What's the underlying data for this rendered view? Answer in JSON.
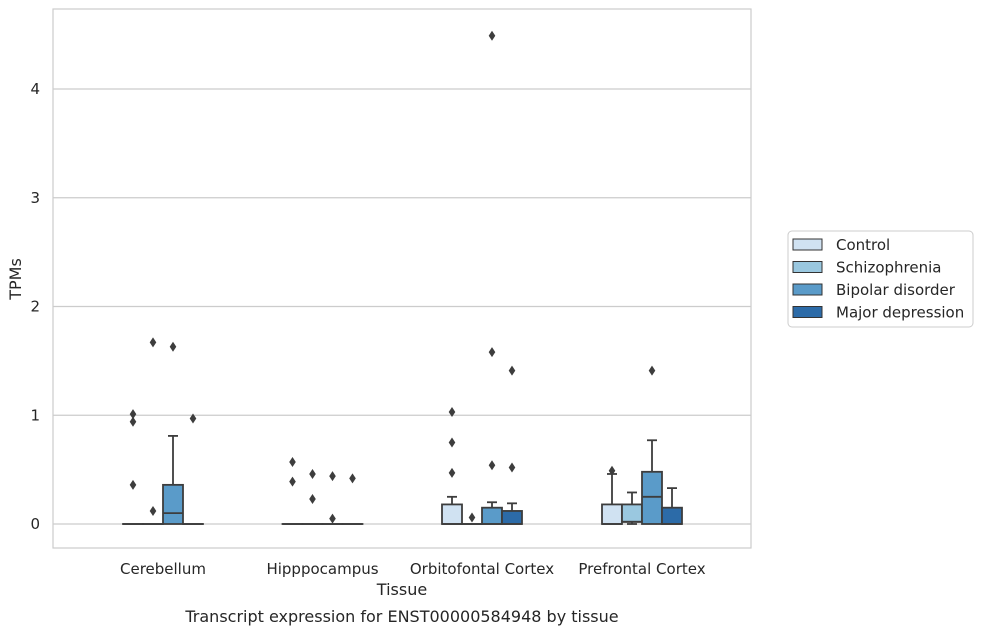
{
  "chart_data": {
    "type": "box",
    "title": "",
    "caption": "Transcript expression for ENST00000584948 by tissue",
    "xlabel": "Tissue",
    "ylabel": "TPMs",
    "ylim": [
      -0.22,
      4.73
    ],
    "yticks": [
      0,
      1,
      2,
      3,
      4
    ],
    "grid": true,
    "legend_position": "right",
    "categories": [
      "Cerebellum",
      "Hipppocampus",
      "Orbitofontal Cortex",
      "Prefrontal Cortex"
    ],
    "series": [
      {
        "name": "Control",
        "color": "#d0e2f2",
        "boxes": [
          {
            "q1": 0,
            "median": 0,
            "q3": 0,
            "whisker_low": 0,
            "whisker_high": 0,
            "outliers": [
              0.36,
              0.94,
              1.01
            ]
          },
          {
            "q1": 0,
            "median": 0,
            "q3": 0,
            "whisker_low": 0,
            "whisker_high": 0,
            "outliers": [
              0.39,
              0.57
            ]
          },
          {
            "q1": 0,
            "median": 0,
            "q3": 0.18,
            "whisker_low": 0,
            "whisker_high": 0.25,
            "outliers": [
              0.47,
              0.75,
              1.03
            ]
          },
          {
            "q1": 0,
            "median": 0,
            "q3": 0.18,
            "whisker_low": 0,
            "whisker_high": 0.46,
            "outliers": [
              0.49
            ]
          }
        ]
      },
      {
        "name": "Schizophrenia",
        "color": "#9ac8e0",
        "boxes": [
          {
            "q1": 0,
            "median": 0,
            "q3": 0,
            "whisker_low": 0,
            "whisker_high": 0,
            "outliers": [
              0.12,
              1.67
            ]
          },
          {
            "q1": 0,
            "median": 0,
            "q3": 0,
            "whisker_low": 0,
            "whisker_high": 0,
            "outliers": [
              0.23,
              0.46
            ]
          },
          {
            "q1": 0,
            "median": 0,
            "q3": 0,
            "whisker_low": 0,
            "whisker_high": 0,
            "outliers": [
              0.06
            ]
          },
          {
            "q1": 0.02,
            "median": 0.02,
            "q3": 0.18,
            "whisker_low": 0,
            "whisker_high": 0.29,
            "outliers": []
          }
        ]
      },
      {
        "name": "Bipolar disorder",
        "color": "#5a9bc9",
        "boxes": [
          {
            "q1": 0,
            "median": 0.1,
            "q3": 0.36,
            "whisker_low": 0,
            "whisker_high": 0.81,
            "outliers": [
              1.63
            ]
          },
          {
            "q1": 0,
            "median": 0,
            "q3": 0,
            "whisker_low": 0,
            "whisker_high": 0,
            "outliers": [
              0.05,
              0.44
            ]
          },
          {
            "q1": 0,
            "median": 0,
            "q3": 0.15,
            "whisker_low": 0,
            "whisker_high": 0.2,
            "outliers": [
              0.54,
              1.58,
              4.49
            ]
          },
          {
            "q1": 0,
            "median": 0.25,
            "q3": 0.48,
            "whisker_low": 0,
            "whisker_high": 0.77,
            "outliers": [
              1.41
            ]
          }
        ]
      },
      {
        "name": "Major depression",
        "color": "#2c6ba8",
        "boxes": [
          {
            "q1": 0,
            "median": 0,
            "q3": 0,
            "whisker_low": 0,
            "whisker_high": 0,
            "outliers": [
              0.97
            ]
          },
          {
            "q1": 0,
            "median": 0,
            "q3": 0,
            "whisker_low": 0,
            "whisker_high": 0,
            "outliers": [
              0.42
            ]
          },
          {
            "q1": 0,
            "median": 0,
            "q3": 0.12,
            "whisker_low": 0,
            "whisker_high": 0.19,
            "outliers": [
              0.52,
              1.41
            ]
          },
          {
            "q1": 0,
            "median": 0,
            "q3": 0.15,
            "whisker_low": 0,
            "whisker_high": 0.33,
            "outliers": []
          }
        ]
      }
    ]
  }
}
